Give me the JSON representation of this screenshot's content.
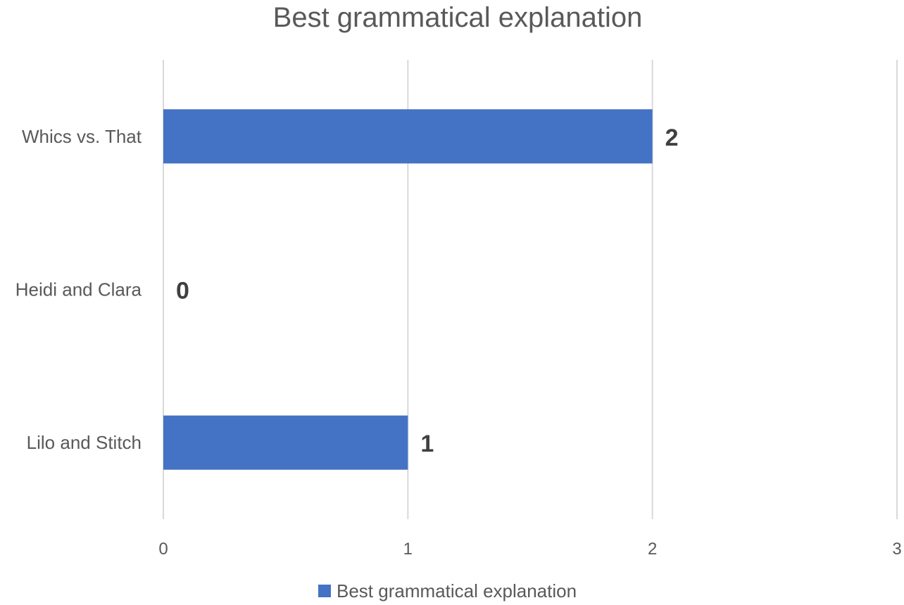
{
  "chart_data": {
    "type": "bar",
    "orientation": "horizontal",
    "title": "Best grammatical explanation",
    "categories": [
      "Whics vs. That",
      "Heidi and Clara",
      "Lilo and Stitch"
    ],
    "series": [
      {
        "name": "Best grammatical explanation",
        "values": [
          2,
          0,
          1
        ]
      }
    ],
    "xlim": [
      0,
      3
    ],
    "xticks": [
      "0",
      "1",
      "2",
      "3"
    ],
    "grid": true,
    "legend": "bottom",
    "data_labels": true
  },
  "colors": {
    "bar": "#4472C4",
    "text": "#595959",
    "grid": "#d9d9d9"
  }
}
